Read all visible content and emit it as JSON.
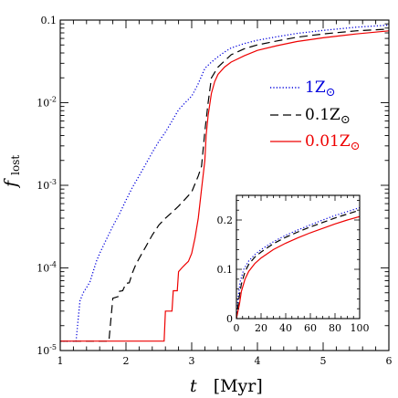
{
  "chart_data": {
    "type": "line",
    "xlabel": "t",
    "xunit": "[Myr]",
    "ylabel_main": "f",
    "ylabel_sub": "lost",
    "yscale": "log",
    "xlim": [
      1,
      6
    ],
    "ylim": [
      1e-05,
      0.1
    ],
    "xticks": [
      1,
      2,
      3,
      4,
      5,
      6
    ],
    "xtick_labels": [
      "1",
      "2",
      "3",
      "4",
      "5",
      "6"
    ],
    "yticks": [
      1e-05,
      0.0001,
      0.001,
      0.01,
      0.1
    ],
    "ytick_labels": [
      {
        "base": "10",
        "exp": "-5"
      },
      {
        "base": "10",
        "exp": "-4"
      },
      {
        "base": "10",
        "exp": "-3"
      },
      {
        "base": "10",
        "exp": "-2"
      },
      {
        "base": "0.1",
        "exp": ""
      }
    ],
    "grid": false,
    "legend_position": "right",
    "series": [
      {
        "name": "1Z",
        "name_suffix": "⊙",
        "color": "#0000dd",
        "dash": "dotted",
        "x": [
          1.0,
          1.24,
          1.3,
          1.35,
          1.45,
          1.55,
          1.6,
          1.7,
          1.8,
          1.9,
          2.0,
          2.1,
          2.2,
          2.3,
          2.4,
          2.5,
          2.6,
          2.7,
          2.8,
          2.9,
          3.0,
          3.05,
          3.1,
          3.15,
          3.2,
          3.3,
          3.4,
          3.5,
          3.6,
          3.8,
          4.0,
          4.3,
          4.6,
          5.0,
          5.5,
          6.0
        ],
        "y": [
          1.3e-05,
          1.3e-05,
          4e-05,
          5e-05,
          6.7e-05,
          0.00012,
          0.00015,
          0.00022,
          0.00032,
          0.00045,
          0.00066,
          0.00095,
          0.0013,
          0.0018,
          0.0025,
          0.0034,
          0.0044,
          0.006,
          0.0082,
          0.01,
          0.012,
          0.0142,
          0.017,
          0.021,
          0.026,
          0.031,
          0.036,
          0.041,
          0.046,
          0.052,
          0.057,
          0.063,
          0.069,
          0.075,
          0.082,
          0.087
        ]
      },
      {
        "name": "0.1Z",
        "name_suffix": "⊙",
        "color": "#000000",
        "dash": "dashed",
        "x": [
          1.0,
          1.74,
          1.8,
          1.88,
          1.9,
          1.95,
          2.0,
          2.05,
          2.1,
          2.15,
          2.2,
          2.3,
          2.4,
          2.5,
          2.6,
          2.7,
          2.8,
          2.9,
          3.0,
          3.1,
          3.15,
          3.2,
          3.25,
          3.3,
          3.4,
          3.5,
          3.6,
          3.8,
          4.0,
          4.3,
          4.6,
          5.0,
          5.5,
          6.0
        ],
        "y": [
          1.3e-05,
          1.3e-05,
          4.3e-05,
          4.5e-05,
          5.2e-05,
          5.3e-05,
          6.5e-05,
          6.6e-05,
          8.8e-05,
          0.00011,
          0.00013,
          0.00018,
          0.00025,
          0.00033,
          0.0004,
          0.00047,
          0.00056,
          0.00068,
          0.00083,
          0.0013,
          0.0017,
          0.0045,
          0.01,
          0.02,
          0.027,
          0.032,
          0.038,
          0.045,
          0.05,
          0.056,
          0.062,
          0.068,
          0.074,
          0.078
        ]
      },
      {
        "name": "0.01Z",
        "name_suffix": "⊙",
        "color": "#ee0000",
        "dash": "solid",
        "x": [
          1.0,
          2.58,
          2.6,
          2.7,
          2.72,
          2.78,
          2.8,
          2.85,
          2.9,
          2.95,
          3.0,
          3.05,
          3.1,
          3.15,
          3.2,
          3.22,
          3.25,
          3.3,
          3.35,
          3.4,
          3.5,
          3.6,
          3.8,
          4.0,
          4.3,
          4.6,
          5.0,
          5.5,
          6.0
        ],
        "y": [
          1.3e-05,
          1.3e-05,
          3e-05,
          3e-05,
          5.3e-05,
          5.3e-05,
          9e-05,
          0.0001,
          0.00011,
          0.00012,
          0.00015,
          0.00023,
          0.0004,
          0.0009,
          0.002,
          0.004,
          0.007,
          0.013,
          0.018,
          0.022,
          0.027,
          0.031,
          0.037,
          0.043,
          0.049,
          0.055,
          0.061,
          0.068,
          0.074
        ]
      }
    ],
    "inset": {
      "type": "line",
      "xlim": [
        0,
        100
      ],
      "ylim": [
        0,
        0.25
      ],
      "xticks": [
        0,
        20,
        40,
        60,
        80,
        100
      ],
      "xtick_labels": [
        "0",
        "20",
        "40",
        "60",
        "80",
        "100"
      ],
      "yticks": [
        0,
        0.1,
        0.2
      ],
      "ytick_labels": [
        "0",
        "0.1",
        "0.2"
      ],
      "series": [
        {
          "color": "#0000dd",
          "dash": "dotted",
          "x": [
            0,
            1.5,
            3,
            6,
            10,
            15,
            20,
            30,
            40,
            50,
            60,
            70,
            80,
            90,
            100
          ],
          "y": [
            0,
            0.045,
            0.075,
            0.1,
            0.117,
            0.13,
            0.14,
            0.156,
            0.169,
            0.18,
            0.19,
            0.2,
            0.209,
            0.217,
            0.225
          ]
        },
        {
          "color": "#000000",
          "dash": "dashed",
          "x": [
            0,
            2,
            4,
            7,
            10,
            15,
            20,
            30,
            40,
            50,
            60,
            70,
            80,
            90,
            100
          ],
          "y": [
            0,
            0.04,
            0.07,
            0.095,
            0.11,
            0.125,
            0.135,
            0.152,
            0.165,
            0.176,
            0.186,
            0.195,
            0.204,
            0.212,
            0.22
          ]
        },
        {
          "color": "#ee0000",
          "dash": "solid",
          "x": [
            0,
            2.5,
            4,
            7,
            10,
            15,
            20,
            30,
            40,
            50,
            60,
            70,
            80,
            90,
            100
          ],
          "y": [
            0,
            0.03,
            0.055,
            0.08,
            0.096,
            0.112,
            0.123,
            0.14,
            0.153,
            0.164,
            0.174,
            0.183,
            0.192,
            0.2,
            0.207
          ]
        }
      ]
    }
  }
}
